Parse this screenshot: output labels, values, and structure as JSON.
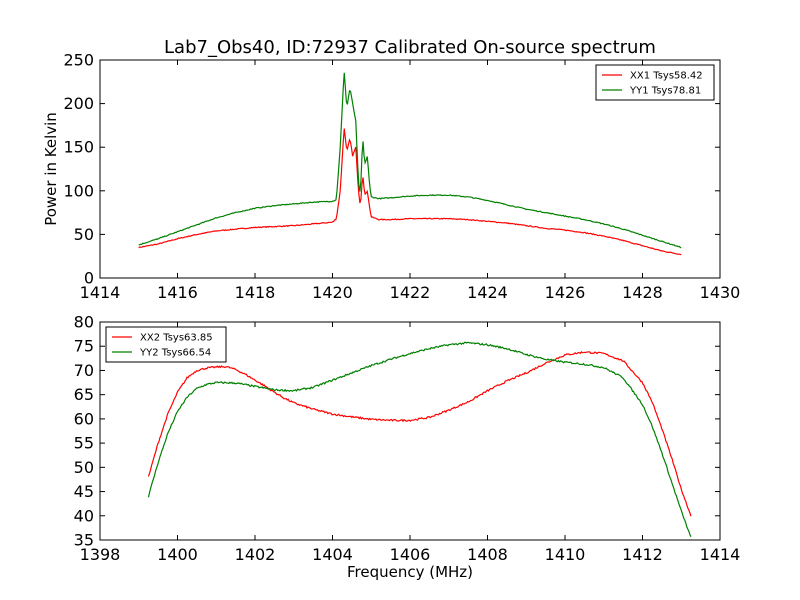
{
  "title": "Lab7_Obs40, ID:72937 Calibrated On-source spectrum",
  "chart_data": [
    {
      "type": "line",
      "ylabel": "Power in Kelvin",
      "xlabel": "",
      "xlim": [
        1414,
        1430
      ],
      "ylim": [
        0,
        250
      ],
      "xticks": [
        "1414",
        "1416",
        "1418",
        "1420",
        "1422",
        "1424",
        "1426",
        "1428",
        "1430"
      ],
      "yticks": [
        "0",
        "50",
        "100",
        "150",
        "200",
        "250"
      ],
      "legend_position": "top-right",
      "series": [
        {
          "name": "XX1 Tsys58.42",
          "color": "#ff0000",
          "points": [
            [
              1415.0,
              35
            ],
            [
              1415.5,
              39
            ],
            [
              1416.0,
              45
            ],
            [
              1416.5,
              50
            ],
            [
              1417.0,
              54
            ],
            [
              1417.5,
              56
            ],
            [
              1418.0,
              58
            ],
            [
              1418.5,
              59
            ],
            [
              1419.0,
              60
            ],
            [
              1419.5,
              62
            ],
            [
              1420.0,
              64
            ],
            [
              1420.1,
              68
            ],
            [
              1420.2,
              100
            ],
            [
              1420.3,
              173
            ],
            [
              1420.37,
              145
            ],
            [
              1420.45,
              160
            ],
            [
              1420.52,
              140
            ],
            [
              1420.6,
              150
            ],
            [
              1420.67,
              100
            ],
            [
              1420.72,
              82
            ],
            [
              1420.78,
              120
            ],
            [
              1420.83,
              95
            ],
            [
              1420.9,
              100
            ],
            [
              1420.96,
              80
            ],
            [
              1421.0,
              70
            ],
            [
              1421.2,
              67
            ],
            [
              1421.5,
              67
            ],
            [
              1422.0,
              68
            ],
            [
              1422.5,
              68
            ],
            [
              1423.0,
              68
            ],
            [
              1423.5,
              67
            ],
            [
              1424.0,
              65
            ],
            [
              1424.5,
              63
            ],
            [
              1425.0,
              60
            ],
            [
              1425.5,
              57
            ],
            [
              1426.0,
              55
            ],
            [
              1426.5,
              52
            ],
            [
              1427.0,
              48
            ],
            [
              1427.5,
              43
            ],
            [
              1428.0,
              37
            ],
            [
              1428.5,
              31
            ],
            [
              1429.0,
              27
            ]
          ]
        },
        {
          "name": "YY1 Tsys78.81",
          "color": "#008000",
          "points": [
            [
              1415.0,
              38
            ],
            [
              1415.5,
              45
            ],
            [
              1416.0,
              53
            ],
            [
              1416.5,
              61
            ],
            [
              1417.0,
              69
            ],
            [
              1417.5,
              75
            ],
            [
              1418.0,
              80
            ],
            [
              1418.5,
              83
            ],
            [
              1419.0,
              85
            ],
            [
              1419.5,
              87
            ],
            [
              1420.0,
              88
            ],
            [
              1420.1,
              90
            ],
            [
              1420.2,
              150
            ],
            [
              1420.3,
              238
            ],
            [
              1420.37,
              195
            ],
            [
              1420.45,
              218
            ],
            [
              1420.52,
              200
            ],
            [
              1420.6,
              180
            ],
            [
              1420.67,
              110
            ],
            [
              1420.72,
              95
            ],
            [
              1420.78,
              162
            ],
            [
              1420.83,
              130
            ],
            [
              1420.9,
              140
            ],
            [
              1420.96,
              105
            ],
            [
              1421.0,
              93
            ],
            [
              1421.2,
              91
            ],
            [
              1421.5,
              92
            ],
            [
              1422.0,
              94
            ],
            [
              1422.5,
              95
            ],
            [
              1423.0,
              95
            ],
            [
              1423.5,
              93
            ],
            [
              1424.0,
              89
            ],
            [
              1424.5,
              84
            ],
            [
              1425.0,
              79
            ],
            [
              1425.5,
              75
            ],
            [
              1426.0,
              71
            ],
            [
              1426.5,
              67
            ],
            [
              1427.0,
              62
            ],
            [
              1427.5,
              56
            ],
            [
              1428.0,
              49
            ],
            [
              1428.5,
              42
            ],
            [
              1429.0,
              35
            ]
          ]
        }
      ]
    },
    {
      "type": "line",
      "xlabel": "Frequency (MHz)",
      "ylabel": "",
      "xlim": [
        1398,
        1414
      ],
      "ylim": [
        35,
        80
      ],
      "xticks": [
        "1398",
        "1400",
        "1402",
        "1404",
        "1406",
        "1408",
        "1410",
        "1412",
        "1414"
      ],
      "yticks": [
        "35",
        "40",
        "45",
        "50",
        "55",
        "60",
        "65",
        "70",
        "75",
        "80"
      ],
      "legend_position": "top-left",
      "series": [
        {
          "name": "XX2 Tsys63.85",
          "color": "#ff0000",
          "points": [
            [
              1399.25,
              48
            ],
            [
              1399.5,
              55
            ],
            [
              1399.75,
              61
            ],
            [
              1400.0,
              65.5
            ],
            [
              1400.25,
              68.5
            ],
            [
              1400.5,
              70
            ],
            [
              1400.75,
              70.5
            ],
            [
              1401.0,
              70.7
            ],
            [
              1401.25,
              70.8
            ],
            [
              1401.5,
              70.2
            ],
            [
              1401.75,
              69.2
            ],
            [
              1402.0,
              68
            ],
            [
              1402.25,
              66.8
            ],
            [
              1402.5,
              65.5
            ],
            [
              1402.75,
              64.3
            ],
            [
              1403.0,
              63.3
            ],
            [
              1403.5,
              62
            ],
            [
              1404.0,
              61
            ],
            [
              1404.5,
              60.4
            ],
            [
              1405.0,
              59.9
            ],
            [
              1405.5,
              59.7
            ],
            [
              1406.0,
              59.7
            ],
            [
              1406.5,
              60.3
            ],
            [
              1407.0,
              61.8
            ],
            [
              1407.5,
              63.5
            ],
            [
              1408.0,
              65.8
            ],
            [
              1408.5,
              67.8
            ],
            [
              1409.0,
              69.5
            ],
            [
              1409.5,
              71.5
            ],
            [
              1410.0,
              73.2
            ],
            [
              1410.5,
              73.8
            ],
            [
              1411.0,
              73.5
            ],
            [
              1411.5,
              72
            ],
            [
              1412.0,
              67.5
            ],
            [
              1412.25,
              63.5
            ],
            [
              1412.5,
              58
            ],
            [
              1412.75,
              52
            ],
            [
              1413.0,
              45.5
            ],
            [
              1413.25,
              40
            ]
          ]
        },
        {
          "name": "YY2 Tsys66.54",
          "color": "#008000",
          "points": [
            [
              1399.25,
              44
            ],
            [
              1399.5,
              51
            ],
            [
              1399.75,
              57
            ],
            [
              1400.0,
              61.5
            ],
            [
              1400.25,
              64.5
            ],
            [
              1400.5,
              66.3
            ],
            [
              1400.75,
              67.1
            ],
            [
              1401.0,
              67.5
            ],
            [
              1401.5,
              67.4
            ],
            [
              1402.0,
              66.7
            ],
            [
              1402.5,
              66
            ],
            [
              1403.0,
              65.8
            ],
            [
              1403.5,
              66.5
            ],
            [
              1404.0,
              68
            ],
            [
              1404.5,
              69.5
            ],
            [
              1405.0,
              71
            ],
            [
              1405.5,
              72.3
            ],
            [
              1406.0,
              73.5
            ],
            [
              1406.5,
              74.5
            ],
            [
              1407.0,
              75.3
            ],
            [
              1407.5,
              75.7
            ],
            [
              1408.0,
              75.3
            ],
            [
              1408.5,
              74.5
            ],
            [
              1409.0,
              73.3
            ],
            [
              1409.5,
              72.3
            ],
            [
              1410.0,
              71.7
            ],
            [
              1410.5,
              71.3
            ],
            [
              1411.0,
              70.6
            ],
            [
              1411.5,
              68.5
            ],
            [
              1412.0,
              63
            ],
            [
              1412.25,
              58.5
            ],
            [
              1412.5,
              53
            ],
            [
              1412.75,
              47
            ],
            [
              1413.0,
              41
            ],
            [
              1413.25,
              35.5
            ]
          ]
        }
      ]
    }
  ]
}
